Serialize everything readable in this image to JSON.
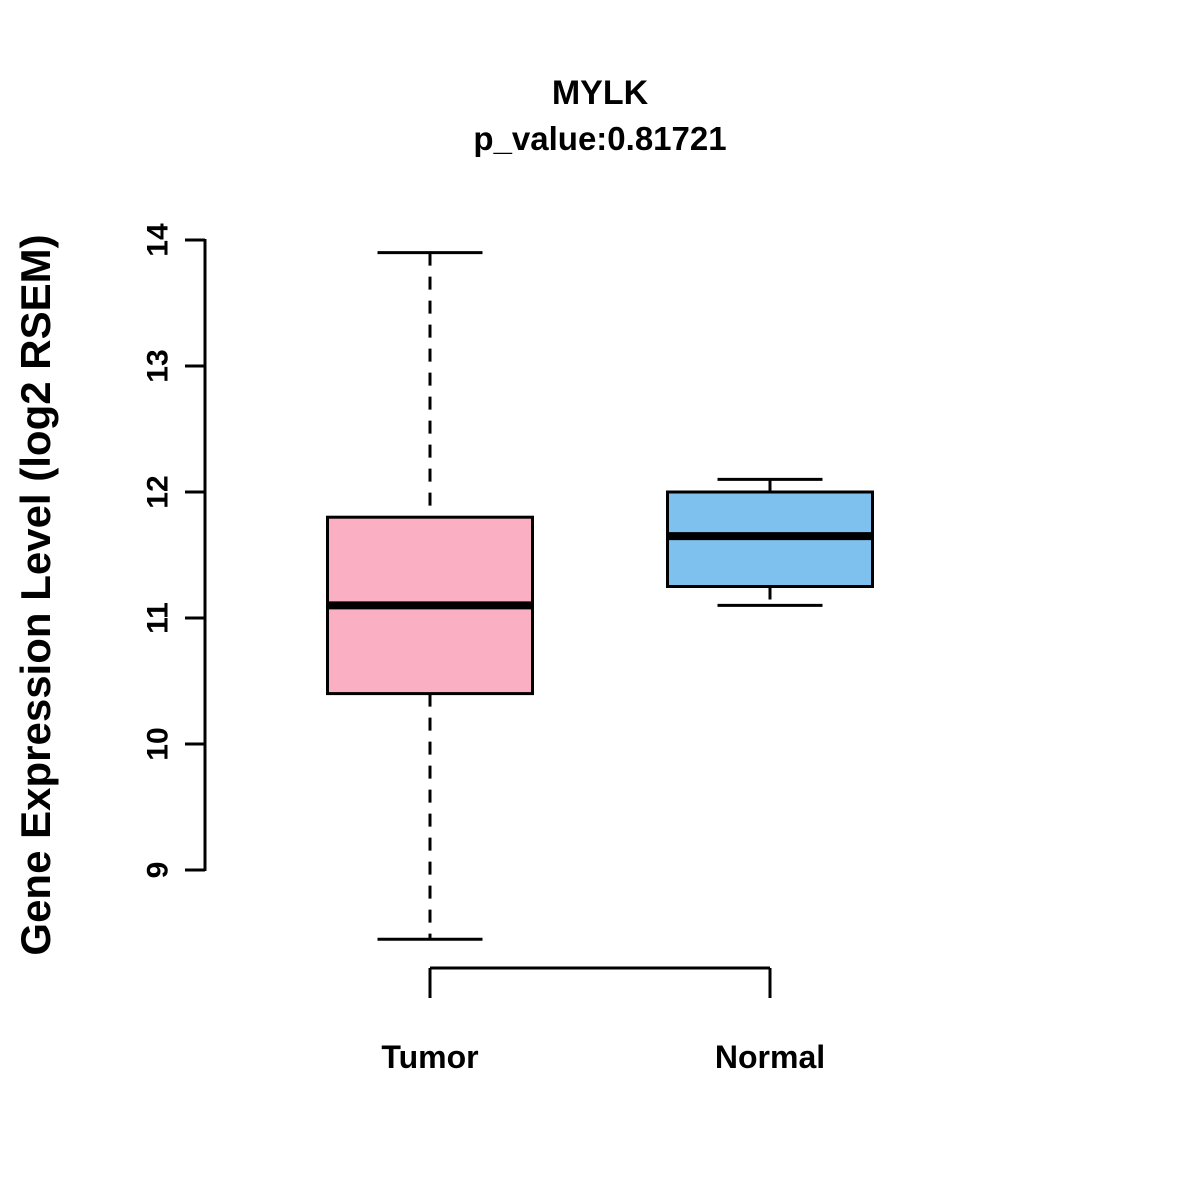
{
  "title": "MYLK",
  "subtitle": "p_value:0.81721",
  "ylabel": "Gene Expression Level (log2 RSEM)",
  "chart_data": {
    "type": "boxplot",
    "title": "MYLK",
    "subtitle": "p_value:0.81721",
    "ylabel": "Gene Expression Level (log2 RSEM)",
    "xlabel": "",
    "categories": [
      "Tumor",
      "Normal"
    ],
    "yticks": [
      9,
      10,
      11,
      12,
      13,
      14
    ],
    "ylim": [
      8.2,
      14.2
    ],
    "grid": false,
    "legend": "none",
    "series": [
      {
        "name": "Tumor",
        "color": "#FBAFC3",
        "whisker_low": 8.45,
        "q1": 10.4,
        "median": 11.1,
        "q3": 11.8,
        "whisker_high": 13.9
      },
      {
        "name": "Normal",
        "color": "#7EC0EE",
        "whisker_low": 11.1,
        "q1": 11.25,
        "median": 11.65,
        "q3": 12.0,
        "whisker_high": 12.1
      }
    ]
  }
}
